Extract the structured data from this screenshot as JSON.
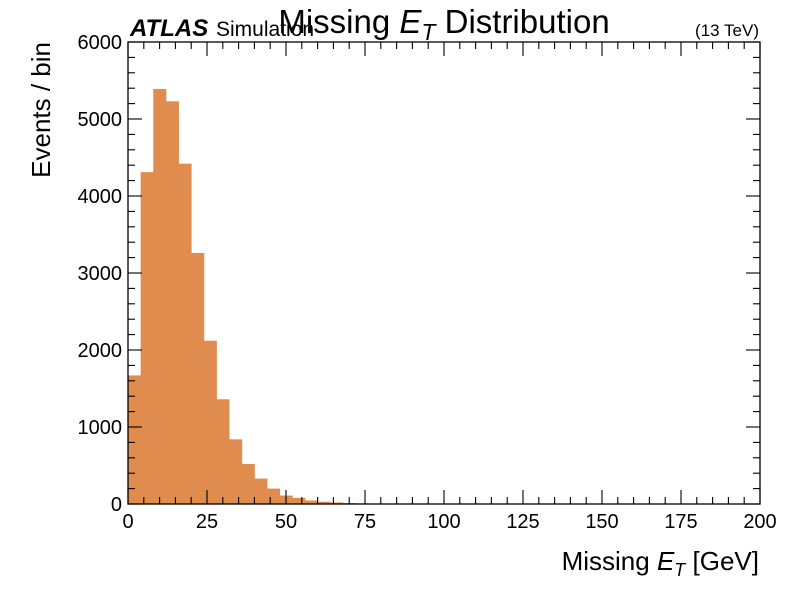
{
  "chart_data": {
    "type": "bar",
    "title": "Missing E_T Distribution",
    "title_parts": {
      "pre": "Missing ",
      "sym": "E",
      "sub": "T",
      "post": " Distribution"
    },
    "xlabel": "Missing E_T [GeV]",
    "xlabel_parts": {
      "pre": "Missing ",
      "sym": "E",
      "sub": "T",
      "post": " [GeV]"
    },
    "ylabel": "Events / bin",
    "experiment_label": "ATLAS",
    "status_label": "Simulation",
    "energy_label": "(13 TeV)",
    "xlim": [
      0,
      200
    ],
    "ylim": [
      0,
      6000
    ],
    "xticks": [
      0,
      25,
      50,
      75,
      100,
      125,
      150,
      175,
      200
    ],
    "xtick_labels": [
      "0",
      "25",
      "50",
      "75",
      "100",
      "125",
      "150",
      "175",
      "200"
    ],
    "yticks": [
      0,
      1000,
      2000,
      3000,
      4000,
      5000,
      6000
    ],
    "ytick_labels": [
      "0",
      "1000",
      "2000",
      "3000",
      "4000",
      "5000",
      "6000"
    ],
    "bin_width": 4,
    "bin_edges_start": 0,
    "values": [
      1670,
      4310,
      5390,
      5230,
      4420,
      3260,
      2120,
      1360,
      840,
      520,
      330,
      200,
      110,
      80,
      45,
      30,
      20,
      12,
      8,
      6,
      4,
      3,
      2,
      1,
      1,
      1,
      0,
      0,
      0,
      0,
      0,
      0,
      0,
      0,
      0,
      0,
      0,
      0,
      0,
      0,
      0,
      0,
      0,
      0,
      0,
      0,
      0,
      0,
      0,
      0
    ],
    "color": "#e08c4e",
    "grid": false,
    "legend": false
  }
}
